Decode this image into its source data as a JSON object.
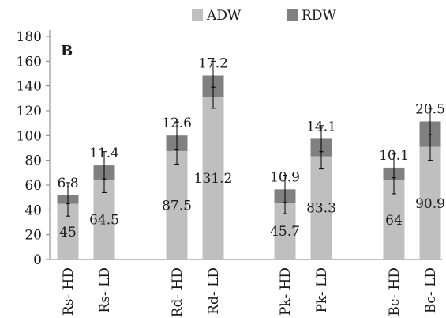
{
  "chart_data": {
    "type": "bar",
    "stacked": true,
    "panel_label": "B",
    "categories": [
      "Rs- HD",
      "Rs- LD",
      "Rd- HD",
      "Rd- LD",
      "Pk- HD",
      "Pk- LD",
      "Bc- HD",
      "Bc- LD"
    ],
    "groups": [
      [
        0,
        1
      ],
      [
        2,
        3
      ],
      [
        4,
        5
      ],
      [
        6,
        7
      ]
    ],
    "series": [
      {
        "name": "ADW",
        "color": "#bfbfbf",
        "values": [
          45,
          64.5,
          87.5,
          131.2,
          45.7,
          83.3,
          64,
          90.9
        ],
        "labels": [
          "45",
          "64.5",
          "87.5",
          "131.2",
          "45.7",
          "83.3",
          "64",
          "90.9"
        ]
      },
      {
        "name": "RDW",
        "color": "#808080",
        "values": [
          6.8,
          11.4,
          12.6,
          17.2,
          10.9,
          14.1,
          10.1,
          20.5
        ],
        "labels": [
          "6.8",
          "11.4",
          "12.6",
          "17.2",
          "10.9",
          "14.1",
          "10.1",
          "20.5"
        ]
      }
    ],
    "error_bars": {
      "center": [
        45,
        65,
        89,
        139,
        46,
        87,
        66,
        101
      ],
      "low": [
        35,
        54,
        77,
        122,
        37,
        73,
        53,
        80
      ],
      "high": [
        62,
        87,
        111,
        160,
        68,
        108,
        85,
        122
      ]
    },
    "ylim": [
      0,
      180
    ],
    "yticks": [
      0,
      20,
      40,
      60,
      80,
      100,
      120,
      140,
      160,
      180
    ],
    "legend_position": "top",
    "grid": false
  }
}
